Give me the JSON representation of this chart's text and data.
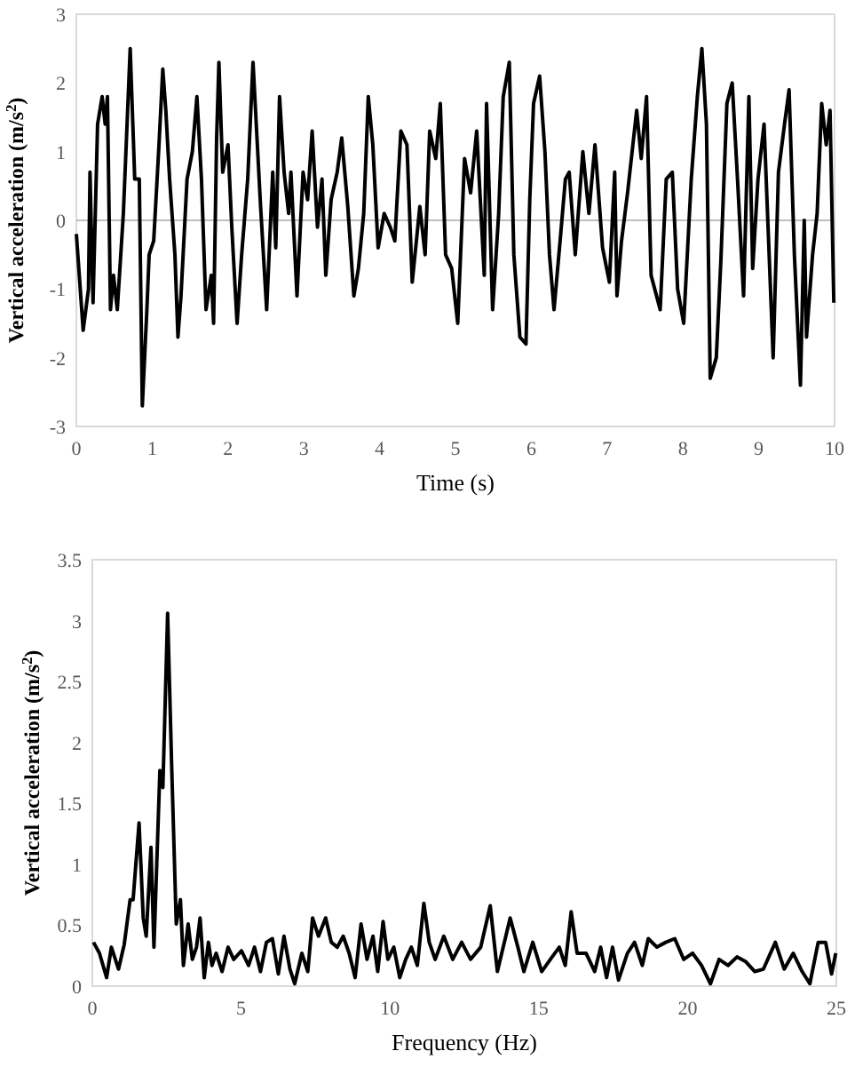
{
  "chart_data": [
    {
      "type": "line",
      "xlabel": "Time (s)",
      "ylabel": "Vertical acceleration (m/s$^{2}$)",
      "xlim": [
        0,
        10
      ],
      "xticks": [
        0,
        1,
        2,
        3,
        4,
        5,
        6,
        7,
        8,
        9,
        10
      ],
      "ylim": [
        -3,
        3
      ],
      "yticks": [
        -3,
        -2,
        -1,
        0,
        1,
        2,
        3
      ],
      "ref_lines": [
        {
          "axis": "y",
          "value": 0,
          "color": "#bfbfbf"
        }
      ],
      "marker": "none",
      "line_style": "solid",
      "series": [
        {
          "color": "#000000",
          "x": [
            0,
            0.09,
            0.16,
            0.18,
            0.22,
            0.28,
            0.34,
            0.38,
            0.41,
            0.45,
            0.49,
            0.54,
            0.62,
            0.71,
            0.77,
            0.83,
            0.87,
            0.93,
            0.96,
            1.02,
            1.09,
            1.14,
            1.18,
            1.23,
            1.3,
            1.34,
            1.38,
            1.46,
            1.53,
            1.59,
            1.65,
            1.71,
            1.78,
            1.81,
            1.85,
            1.88,
            1.93,
            2.0,
            2.05,
            2.12,
            2.18,
            2.26,
            2.33,
            2.43,
            2.51,
            2.59,
            2.63,
            2.68,
            2.74,
            2.8,
            2.83,
            2.91,
            2.99,
            3.05,
            3.11,
            3.18,
            3.24,
            3.29,
            3.36,
            3.44,
            3.5,
            3.58,
            3.66,
            3.72,
            3.79,
            3.85,
            3.91,
            3.98,
            4.06,
            4.14,
            4.2,
            4.28,
            4.36,
            4.43,
            4.53,
            4.6,
            4.66,
            4.74,
            4.8,
            4.87,
            4.95,
            5.03,
            5.12,
            5.2,
            5.28,
            5.38,
            5.41,
            5.49,
            5.57,
            5.63,
            5.71,
            5.77,
            5.85,
            5.93,
            5.98,
            6.03,
            6.11,
            6.18,
            6.24,
            6.3,
            6.38,
            6.45,
            6.5,
            6.58,
            6.68,
            6.76,
            6.84,
            6.94,
            7.03,
            7.1,
            7.13,
            7.19,
            7.27,
            7.39,
            7.45,
            7.52,
            7.58,
            7.7,
            7.78,
            7.86,
            7.93,
            8.01,
            8.11,
            8.19,
            8.25,
            8.31,
            8.36,
            8.44,
            8.5,
            8.58,
            8.65,
            8.72,
            8.8,
            8.87,
            8.92,
            8.99,
            9.07,
            9.19,
            9.26,
            9.34,
            9.4,
            9.47,
            9.55,
            9.6,
            9.63,
            9.71,
            9.77,
            9.83,
            9.89,
            9.94,
            9.99
          ],
          "values": [
            -0.2,
            -1.6,
            -1.0,
            0.7,
            -1.2,
            1.4,
            1.8,
            1.4,
            1.8,
            -1.3,
            -0.8,
            -1.3,
            0.1,
            2.5,
            0.6,
            0.6,
            -2.7,
            -1.3,
            -0.5,
            -0.3,
            1.1,
            2.2,
            1.6,
            0.6,
            -0.5,
            -1.7,
            -1.1,
            0.6,
            1.0,
            1.8,
            0.6,
            -1.3,
            -0.8,
            -1.5,
            1.2,
            2.3,
            0.7,
            1.1,
            -0.1,
            -1.5,
            -0.5,
            0.6,
            2.3,
            0.2,
            -1.3,
            0.7,
            -0.4,
            1.8,
            0.7,
            0.1,
            0.7,
            -1.1,
            0.7,
            0.3,
            1.3,
            -0.1,
            0.6,
            -0.8,
            0.3,
            0.7,
            1.2,
            0.2,
            -1.1,
            -0.7,
            0.1,
            1.8,
            1.1,
            -0.4,
            0.1,
            -0.1,
            -0.3,
            1.3,
            1.1,
            -0.9,
            0.2,
            -0.5,
            1.3,
            0.9,
            1.7,
            -0.5,
            -0.7,
            -1.5,
            0.9,
            0.4,
            1.3,
            -0.8,
            1.7,
            -1.3,
            0.1,
            1.8,
            2.3,
            -0.5,
            -1.7,
            -1.8,
            0.3,
            1.7,
            2.1,
            1.0,
            -0.5,
            -1.3,
            -0.3,
            0.6,
            0.7,
            -0.5,
            1.0,
            0.1,
            1.1,
            -0.4,
            -0.9,
            0.7,
            -1.1,
            -0.3,
            0.4,
            1.6,
            0.9,
            1.8,
            -0.8,
            -1.3,
            0.6,
            0.7,
            -1.0,
            -1.5,
            0.6,
            1.8,
            2.5,
            1.4,
            -2.3,
            -2.0,
            -0.6,
            1.7,
            2.0,
            0.6,
            -1.1,
            1.8,
            -0.7,
            0.6,
            1.4,
            -2.0,
            0.7,
            1.4,
            1.9,
            -0.5,
            -2.4,
            0.0,
            -1.7,
            -0.5,
            0.1,
            1.7,
            1.1,
            1.6,
            -1.2
          ]
        }
      ]
    },
    {
      "type": "line",
      "xlabel": "Frequency (Hz)",
      "ylabel": "Vertical acceleration (m/s$^{2}$)",
      "xlim": [
        0,
        25
      ],
      "xticks": [
        0,
        5,
        10,
        15,
        20,
        25
      ],
      "ylim": [
        0,
        3.5
      ],
      "yticks": [
        0,
        0.5,
        1,
        1.5,
        2,
        2.5,
        3,
        3.5
      ],
      "marker": "none",
      "line_style": "solid",
      "series": [
        {
          "color": "#000000",
          "x": [
            0.04,
            0.24,
            0.48,
            0.64,
            0.88,
            1.07,
            1.27,
            1.37,
            1.57,
            1.71,
            1.81,
            1.97,
            2.07,
            2.27,
            2.37,
            2.53,
            2.67,
            2.82,
            2.96,
            3.06,
            3.22,
            3.36,
            3.5,
            3.62,
            3.76,
            3.9,
            4.02,
            4.16,
            4.36,
            4.56,
            4.75,
            5.01,
            5.25,
            5.45,
            5.65,
            5.85,
            6.05,
            6.25,
            6.44,
            6.64,
            6.8,
            7.04,
            7.24,
            7.4,
            7.6,
            7.84,
            8.03,
            8.23,
            8.43,
            8.63,
            8.83,
            9.03,
            9.23,
            9.43,
            9.59,
            9.77,
            9.93,
            10.13,
            10.33,
            10.53,
            10.72,
            10.92,
            11.14,
            11.32,
            11.52,
            11.81,
            12.11,
            12.41,
            12.71,
            13.05,
            13.37,
            13.61,
            14.04,
            14.3,
            14.5,
            14.8,
            15.1,
            15.39,
            15.69,
            15.89,
            16.09,
            16.29,
            16.59,
            16.88,
            17.08,
            17.28,
            17.48,
            17.68,
            17.98,
            18.22,
            18.48,
            18.68,
            18.97,
            19.27,
            19.57,
            19.87,
            20.17,
            20.47,
            20.77,
            21.06,
            21.36,
            21.66,
            21.96,
            22.26,
            22.55,
            22.95,
            23.25,
            23.55,
            23.85,
            24.11,
            24.39,
            24.64,
            24.84,
            24.98
          ],
          "values": [
            0.36,
            0.27,
            0.07,
            0.32,
            0.14,
            0.34,
            0.71,
            0.71,
            1.34,
            0.56,
            0.41,
            1.14,
            0.32,
            1.77,
            1.63,
            3.06,
            1.77,
            0.51,
            0.71,
            0.17,
            0.51,
            0.22,
            0.32,
            0.56,
            0.07,
            0.36,
            0.17,
            0.27,
            0.12,
            0.32,
            0.22,
            0.29,
            0.17,
            0.32,
            0.12,
            0.36,
            0.39,
            0.1,
            0.41,
            0.14,
            0.02,
            0.27,
            0.12,
            0.56,
            0.41,
            0.56,
            0.36,
            0.32,
            0.41,
            0.27,
            0.07,
            0.51,
            0.22,
            0.41,
            0.12,
            0.53,
            0.22,
            0.32,
            0.07,
            0.22,
            0.32,
            0.17,
            0.68,
            0.36,
            0.22,
            0.41,
            0.22,
            0.36,
            0.22,
            0.32,
            0.66,
            0.12,
            0.56,
            0.32,
            0.12,
            0.36,
            0.12,
            0.22,
            0.32,
            0.17,
            0.61,
            0.27,
            0.27,
            0.12,
            0.32,
            0.07,
            0.32,
            0.05,
            0.27,
            0.36,
            0.17,
            0.39,
            0.32,
            0.36,
            0.39,
            0.22,
            0.27,
            0.17,
            0.02,
            0.22,
            0.17,
            0.24,
            0.2,
            0.12,
            0.14,
            0.36,
            0.14,
            0.27,
            0.12,
            0.02,
            0.36,
            0.36,
            0.1,
            0.27
          ]
        }
      ]
    }
  ]
}
